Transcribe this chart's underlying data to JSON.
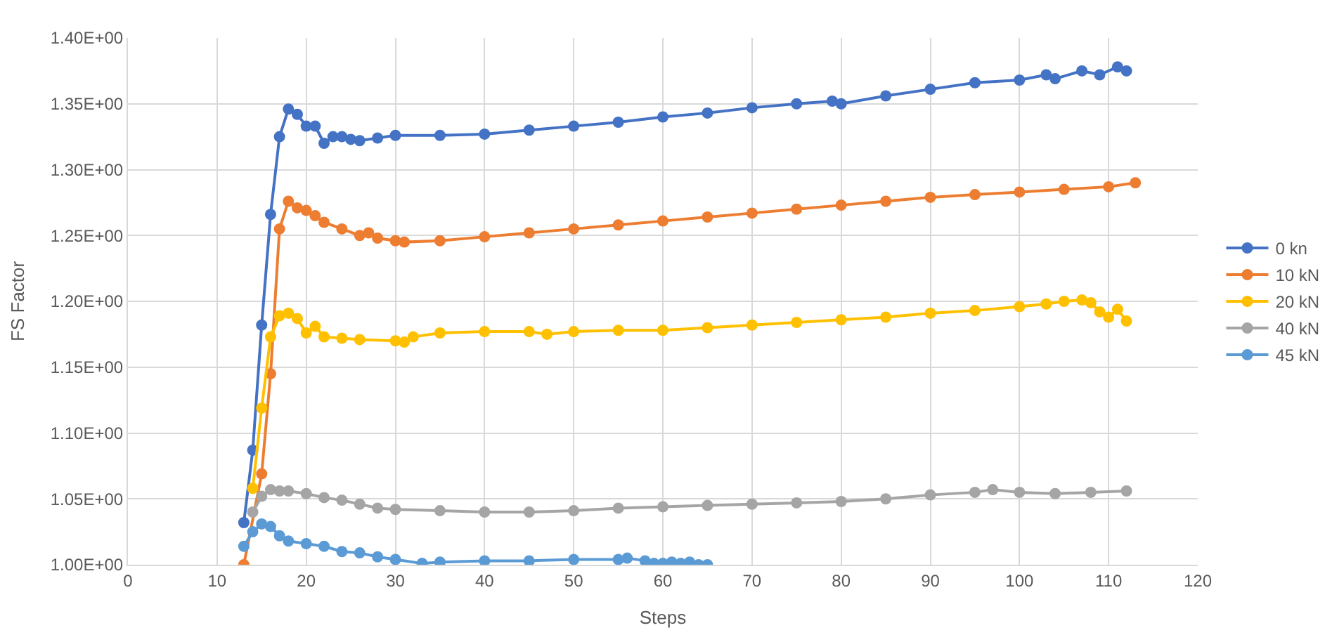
{
  "chart_data": {
    "type": "line",
    "xlabel": "Steps",
    "ylabel": "FS Factor",
    "xlim": [
      0,
      120
    ],
    "xticks": [
      0,
      10,
      20,
      30,
      40,
      50,
      60,
      70,
      80,
      90,
      100,
      110,
      120
    ],
    "ylim": [
      1.0,
      1.4
    ],
    "yticks": [
      {
        "value": 1.0,
        "label": "1.00E+00"
      },
      {
        "value": 1.05,
        "label": "1.05E+00"
      },
      {
        "value": 1.1,
        "label": "1.10E+00"
      },
      {
        "value": 1.15,
        "label": "1.15E+00"
      },
      {
        "value": 1.2,
        "label": "1.20E+00"
      },
      {
        "value": 1.25,
        "label": "1.25E+00"
      },
      {
        "value": 1.3,
        "label": "1.30E+00"
      },
      {
        "value": 1.35,
        "label": "1.35E+00"
      },
      {
        "value": 1.4,
        "label": "1.40E+00"
      }
    ],
    "grid": true,
    "legend": "right",
    "marker": "circle",
    "line_style": "solid",
    "series": [
      {
        "name": "0 kn",
        "color": "#4472c4",
        "x": [
          13,
          14,
          15,
          16,
          17,
          18,
          19,
          20,
          21,
          22,
          23,
          24,
          25,
          26,
          28,
          30,
          35,
          40,
          45,
          50,
          55,
          60,
          65,
          70,
          75,
          79,
          80,
          85,
          90,
          95,
          100,
          103,
          104,
          107,
          109,
          111,
          112
        ],
        "values": [
          1.032,
          1.087,
          1.182,
          1.266,
          1.325,
          1.346,
          1.342,
          1.333,
          1.333,
          1.32,
          1.325,
          1.325,
          1.323,
          1.322,
          1.324,
          1.326,
          1.326,
          1.327,
          1.33,
          1.333,
          1.336,
          1.34,
          1.343,
          1.347,
          1.35,
          1.352,
          1.35,
          1.356,
          1.361,
          1.366,
          1.368,
          1.372,
          1.369,
          1.375,
          1.372,
          1.378,
          1.375
        ]
      },
      {
        "name": "10 kN",
        "color": "#ed7d31",
        "x": [
          13,
          15,
          16,
          17,
          18,
          19,
          20,
          21,
          22,
          24,
          26,
          27,
          28,
          30,
          31,
          35,
          40,
          45,
          50,
          55,
          60,
          65,
          70,
          75,
          80,
          85,
          90,
          95,
          100,
          105,
          110,
          113
        ],
        "values": [
          1.0,
          1.069,
          1.145,
          1.255,
          1.276,
          1.271,
          1.269,
          1.265,
          1.26,
          1.255,
          1.25,
          1.252,
          1.248,
          1.246,
          1.245,
          1.246,
          1.249,
          1.252,
          1.255,
          1.258,
          1.261,
          1.264,
          1.267,
          1.27,
          1.273,
          1.276,
          1.279,
          1.281,
          1.283,
          1.285,
          1.287,
          1.29
        ]
      },
      {
        "name": "20 kN",
        "color": "#ffc000",
        "x": [
          14,
          15,
          16,
          17,
          18,
          19,
          20,
          21,
          22,
          24,
          26,
          30,
          31,
          32,
          35,
          40,
          45,
          47,
          50,
          55,
          60,
          65,
          70,
          75,
          80,
          85,
          90,
          95,
          100,
          103,
          105,
          107,
          108,
          109,
          110,
          111,
          112
        ],
        "values": [
          1.058,
          1.119,
          1.173,
          1.189,
          1.191,
          1.187,
          1.176,
          1.181,
          1.173,
          1.172,
          1.171,
          1.17,
          1.169,
          1.173,
          1.176,
          1.177,
          1.177,
          1.175,
          1.177,
          1.178,
          1.178,
          1.18,
          1.182,
          1.184,
          1.186,
          1.188,
          1.191,
          1.193,
          1.196,
          1.198,
          1.2,
          1.201,
          1.199,
          1.192,
          1.188,
          1.194,
          1.185
        ]
      },
      {
        "name": "40 kN",
        "color": "#a5a5a5",
        "x": [
          14,
          15,
          16,
          17,
          18,
          20,
          22,
          24,
          26,
          28,
          30,
          35,
          40,
          45,
          50,
          55,
          60,
          65,
          70,
          75,
          80,
          85,
          90,
          95,
          97,
          100,
          104,
          108,
          112
        ],
        "values": [
          1.04,
          1.052,
          1.057,
          1.056,
          1.056,
          1.054,
          1.051,
          1.049,
          1.046,
          1.043,
          1.042,
          1.041,
          1.04,
          1.04,
          1.041,
          1.043,
          1.044,
          1.045,
          1.046,
          1.047,
          1.048,
          1.05,
          1.053,
          1.055,
          1.057,
          1.055,
          1.054,
          1.055,
          1.056
        ]
      },
      {
        "name": "45 kN",
        "color": "#5b9bd5",
        "x": [
          13,
          14,
          15,
          16,
          17,
          18,
          20,
          22,
          24,
          26,
          28,
          30,
          33,
          35,
          40,
          45,
          50,
          55,
          56,
          58,
          59,
          60,
          61,
          62,
          63,
          64,
          65
        ],
        "values": [
          1.014,
          1.025,
          1.031,
          1.029,
          1.022,
          1.018,
          1.016,
          1.014,
          1.01,
          1.009,
          1.006,
          1.004,
          1.001,
          1.002,
          1.003,
          1.003,
          1.004,
          1.004,
          1.005,
          1.003,
          1.001,
          1.001,
          1.002,
          1.001,
          1.002,
          1.0,
          1.0
        ]
      }
    ]
  }
}
